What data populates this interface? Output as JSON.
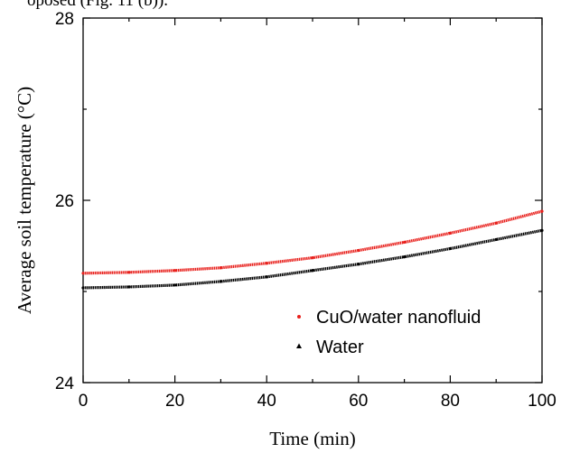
{
  "header_snippet": "oposed (Fig. 11 (b)).",
  "chart_data": {
    "type": "line",
    "title": "",
    "xlabel": "Time (min)",
    "ylabel": "Average soil temperature (°C)",
    "xlim": [
      0,
      100
    ],
    "ylim": [
      24,
      28
    ],
    "xticks": [
      "0",
      "20",
      "40",
      "60",
      "80",
      "100"
    ],
    "yticks": [
      "24",
      "26",
      "28"
    ],
    "x": [
      0,
      10,
      20,
      30,
      40,
      50,
      60,
      70,
      80,
      90,
      100
    ],
    "series": [
      {
        "name": "CuO/water nanofluid",
        "color": "#e8201c",
        "marker": "dot",
        "values": [
          25.2,
          25.21,
          25.23,
          25.26,
          25.31,
          25.37,
          25.45,
          25.54,
          25.64,
          25.75,
          25.88
        ]
      },
      {
        "name": "Water",
        "color": "#000000",
        "marker": "triangle",
        "values": [
          25.04,
          25.05,
          25.07,
          25.11,
          25.16,
          25.23,
          25.3,
          25.38,
          25.47,
          25.57,
          25.67
        ]
      }
    ],
    "legend": {
      "position": "bottom-right"
    },
    "grid": false
  }
}
